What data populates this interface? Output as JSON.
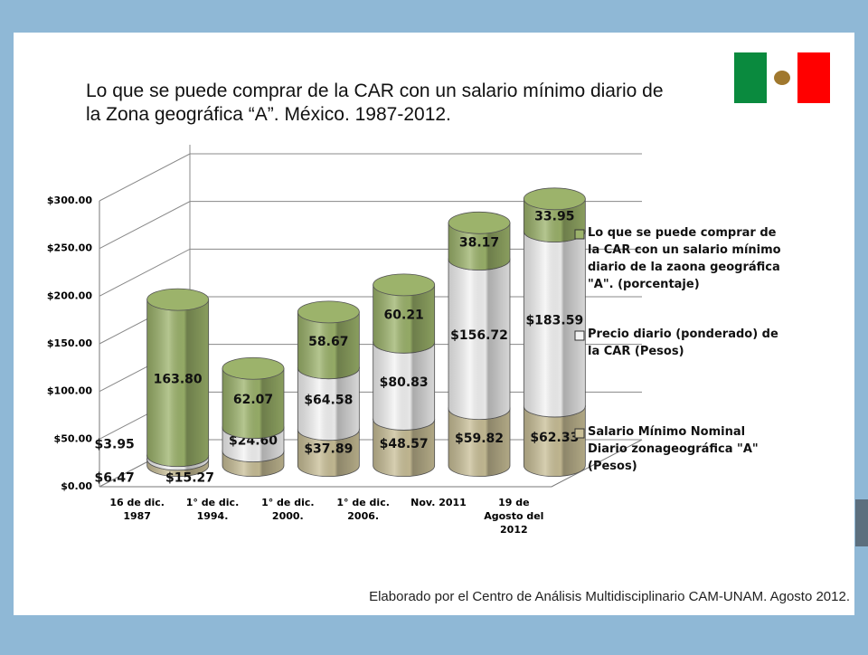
{
  "chart_data": {
    "type": "stacked-cylinder",
    "title": "Lo que se puede comprar de la CAR con un salario mínimo diario de la Zona geográfica “A”. México. 1987-2012.",
    "footer": "Elaborado por el Centro de Análisis Multidisciplinario CAM-UNAM. Agosto 2012.",
    "categories": [
      [
        "16 de dic.",
        "1987"
      ],
      [
        "1° de dic.",
        "1994."
      ],
      [
        "1° de dic.",
        "2000."
      ],
      [
        "1° de dic.",
        "2006."
      ],
      [
        "Nov. 2011"
      ],
      [
        "19 de",
        "Agosto del",
        "2012"
      ]
    ],
    "series": [
      {
        "name": "Salario Mínimo Nominal Diario zonageográfica \"A\" (Pesos)",
        "color": "#c9bf97",
        "values": [
          6.47,
          15.27,
          37.89,
          48.57,
          59.82,
          62.33
        ],
        "value_labels": [
          "$6.47",
          "$15.27",
          "$37.89",
          "$48.57",
          "$59.82",
          "$62.33"
        ]
      },
      {
        "name": "Precio diario (ponderado) de la CAR (Pesos)",
        "color": "#f4f4f4",
        "values": [
          3.95,
          24.6,
          64.58,
          80.83,
          156.72,
          183.59
        ],
        "value_labels": [
          "$3.95",
          "$24.60",
          "$64.58",
          "$80.83",
          "$156.72",
          "$183.59"
        ]
      },
      {
        "name": "Lo que se puede comprar de la CAR con un salario mínimo diario de la zaona geográfica \"A\". (porcentaje)",
        "color": "#9cb36b",
        "values": [
          163.8,
          62.07,
          58.67,
          60.21,
          38.17,
          33.95
        ],
        "value_labels": [
          "163.80",
          "62.07",
          "58.67",
          "60.21",
          "38.17",
          "33.95"
        ]
      }
    ],
    "ylim": [
      0,
      300
    ],
    "yticks": [
      {
        "value": 0,
        "label": "$0.00"
      },
      {
        "value": 50,
        "label": "$50.00"
      },
      {
        "value": 100,
        "label": "$100.00"
      },
      {
        "value": 150,
        "label": "$150.00"
      },
      {
        "value": 200,
        "label": "$200.00"
      },
      {
        "value": 250,
        "label": "$250.00"
      },
      {
        "value": 300,
        "label": "$300.00"
      }
    ],
    "grid": true
  }
}
